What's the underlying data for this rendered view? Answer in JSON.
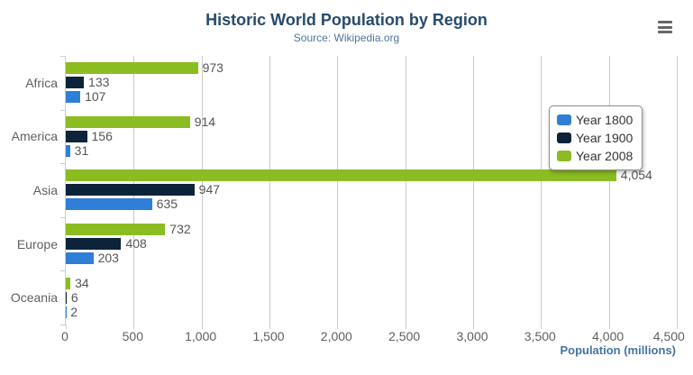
{
  "header": {
    "title": "Historic World Population by Region",
    "subtitle": "Source: Wikipedia.org"
  },
  "menu": {
    "icon": "hamburger-context-menu"
  },
  "chart_data": {
    "type": "bar",
    "orientation": "horizontal",
    "title": "Historic World Population by Region",
    "subtitle": "Source: Wikipedia.org",
    "categories": [
      "Africa",
      "America",
      "Asia",
      "Europe",
      "Oceania"
    ],
    "series": [
      {
        "name": "Year 1800",
        "color": "#2f7ed8",
        "values": [
          107,
          31,
          635,
          203,
          2
        ],
        "labels": [
          "107",
          "31",
          "635",
          "203",
          "2"
        ]
      },
      {
        "name": "Year 1900",
        "color": "#0d233a",
        "values": [
          133,
          156,
          947,
          408,
          6
        ],
        "labels": [
          "133",
          "156",
          "947",
          "408",
          "6"
        ]
      },
      {
        "name": "Year 2008",
        "color": "#8bbc21",
        "values": [
          973,
          914,
          4054,
          732,
          34
        ],
        "labels": [
          "973",
          "914",
          "4,054",
          "732",
          "34"
        ]
      }
    ],
    "bar_order_top_to_bottom": [
      "Year 2008",
      "Year 1900",
      "Year 1800"
    ],
    "xlabel": "Population (millions)",
    "xlim": [
      0,
      4500
    ],
    "xticks": [
      0,
      500,
      1000,
      1500,
      2000,
      2500,
      3000,
      3500,
      4000,
      4500
    ],
    "xtick_labels": [
      "0",
      "500",
      "1,000",
      "1,500",
      "2,000",
      "2,500",
      "3,000",
      "3,500",
      "4,000",
      "4,500"
    ],
    "grid": true,
    "legend": {
      "position": "right-inside",
      "entries": [
        "Year 1800",
        "Year 1900",
        "Year 2008"
      ]
    }
  },
  "colors": {
    "title": "#274b6d",
    "subtitle": "#4d759e",
    "axis_title": "#4572a7",
    "tick_label": "#606060",
    "data_label": "#555555",
    "gridline": "#c9c9c9",
    "axis_line": "#c0d0e0",
    "series_1800": "#2f7ed8",
    "series_1900": "#0d233a",
    "series_2008": "#8bbc21"
  }
}
